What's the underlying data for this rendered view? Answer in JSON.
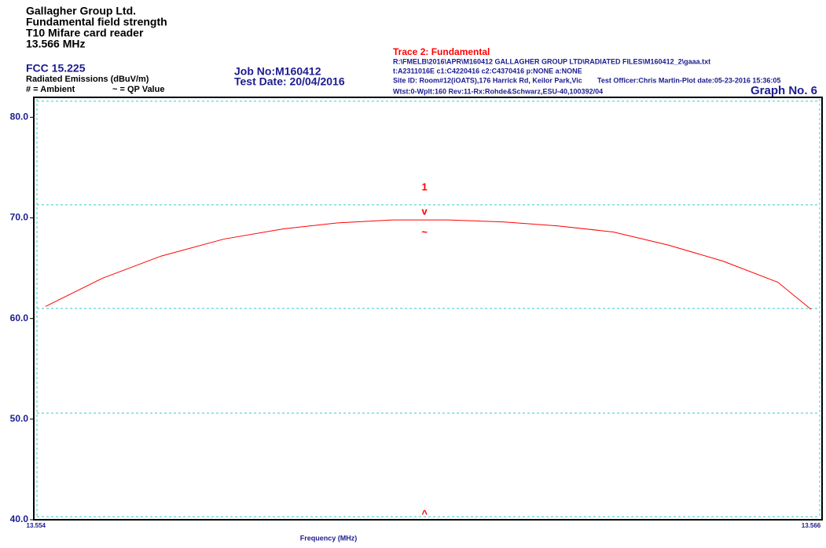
{
  "chart_data": {
    "type": "line",
    "header": {
      "company": "Gallagher Group Ltd.",
      "test": "Fundamental field strength",
      "product": "T10 Mifare card reader",
      "frequency": "13.566 MHz",
      "standard": "FCC 15.225",
      "units": "Radiated Emissions (dBuV/m)",
      "legend_ambient": "# = Ambient",
      "legend_qp": "~ = QP Value",
      "job": "Job No:M160412",
      "date": "Test Date: 20/04/2016",
      "trace": "Trace 2: Fundamental",
      "file": "R:\\FMELB\\2016\\APR\\M160412 GALLAGHER GROUP LTD\\RADIATED FILES\\M160412_2\\gaaa.txt",
      "config": "t:A2311016E c1:C4220416  c2:C4370416 p:NONE a:NONE",
      "site": "Site ID: Room#12(iOATS),176 Harrick Rd, Keilor Park,Vic",
      "officer": "Test Officer:Chris Martin-Plot date:05-23-2016 15:36:05",
      "receiver": "Wtst:0-Wplt:160 Rev:11-Rx:Rohde&Schwarz,ESU-40,100392/04",
      "graph": "Graph No.  6"
    },
    "x_label": "Frequency (MHz)",
    "xlim": [
      13.554,
      13.566
    ],
    "xticks": [
      13.554,
      13.566
    ],
    "ylim": [
      40,
      81.9
    ],
    "yticks": [
      {
        "value": 40,
        "label": "40.0"
      },
      {
        "value": 50,
        "label": "50.0"
      },
      {
        "value": 60,
        "label": "60.0"
      },
      {
        "value": 70,
        "label": "70.0"
      },
      {
        "value": 80,
        "label": "80.0"
      }
    ],
    "hlines": [
      81.6,
      71.3,
      61.0,
      50.6,
      40.3
    ],
    "hline_color": "#33cccc",
    "series": [
      {
        "name": "Trace 2: Fundamental",
        "color": "#ff0000",
        "x": [
          13.554,
          13.55489,
          13.55581,
          13.5568,
          13.55772,
          13.55858,
          13.55945,
          13.56031,
          13.56117,
          13.56203,
          13.5629,
          13.56376,
          13.56462,
          13.56548,
          13.566
        ],
        "values": [
          61.2,
          64.0,
          66.2,
          67.9,
          68.9,
          69.5,
          69.8,
          69.8,
          69.6,
          69.2,
          68.6,
          67.3,
          65.7,
          63.6,
          60.9
        ]
      }
    ],
    "markers": [
      {
        "label": "1",
        "x": 13.55994,
        "y": 73.0
      },
      {
        "label": "v",
        "x": 13.55994,
        "y": 70.6
      },
      {
        "label": "~",
        "x": 13.55994,
        "y": 68.5
      },
      {
        "label": "^",
        "x": 13.55994,
        "y": 40.5
      }
    ]
  }
}
